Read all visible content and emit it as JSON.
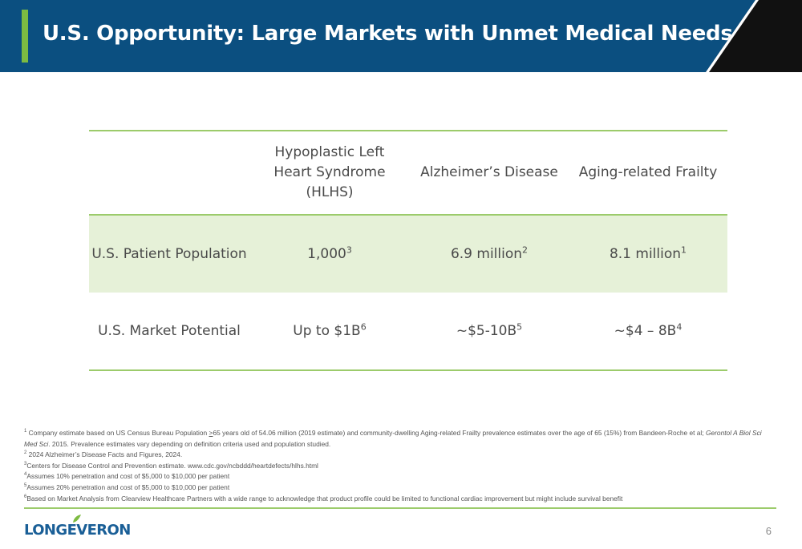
{
  "header": {
    "title": "U.S. Opportunity: Large Markets with Unmet Medical Needs",
    "colors": {
      "band": "#0b4f80",
      "accent": "#7dbb42",
      "corner": "#111111"
    }
  },
  "table": {
    "columns": [
      "",
      "Hypoplastic Left Heart Syndrome (HLHS)",
      "Alzheimer’s Disease",
      "Aging-related Frailty"
    ],
    "rows": [
      {
        "label": "U.S. Patient Population",
        "cells": [
          {
            "value": "1,000",
            "sup": "3"
          },
          {
            "value": "6.9 million",
            "sup": "2"
          },
          {
            "value": "8.1 million",
            "sup": "1"
          }
        ]
      },
      {
        "label": "U.S. Market Potential",
        "cells": [
          {
            "value": "Up to $1B",
            "sup": "6"
          },
          {
            "value": "~$5-10B",
            "sup": "5"
          },
          {
            "value": "~$4 – 8B",
            "sup": "4"
          }
        ]
      }
    ],
    "colors": {
      "rule": "#9ccb6b",
      "shade": "#e6f1d8"
    }
  },
  "footnotes": {
    "f1": {
      "sup": "1",
      "a": " Company estimate based on US Census Bureau Population ",
      "b": ">",
      "c": "65 years old  of 54.06 million (2019 estimate) and community-dwelling Aging-related Frailty prevalence estimates over the age of 65 (15%) from Bandeen-Roche et al; ",
      "d": "Gerontol A Biol Sci Med Sci",
      "e": ". 2015.  Prevalence estimates vary depending on definition criteria used and population studied."
    },
    "f2": {
      "sup": "2",
      "text": " 2024 Alzheimer’s Disease Facts and Figures, 2024."
    },
    "f3": {
      "sup": "3",
      "text": "Centers for Disease Control and Prevention estimate. www.cdc.gov/ncbddd/heartdefects/hlhs.html"
    },
    "f4": {
      "sup": "4",
      "text": "Assumes 10% penetration and cost of $5,000 to $10,000 per patient"
    },
    "f5": {
      "sup": "5",
      "text": "Assumes 20% penetration and cost of $5,000 to $10,000 per patient"
    },
    "f6": {
      "sup": "6",
      "text": "Based on Market Analysis from Clearview Healthcare Partners with a wide range to acknowledge that product profile could be limited to functional cardiac improvement but might include survival benefit"
    }
  },
  "footer": {
    "logo_text": "LONGEVERON",
    "page_number": "6",
    "logo_color": "#1a5f97"
  }
}
